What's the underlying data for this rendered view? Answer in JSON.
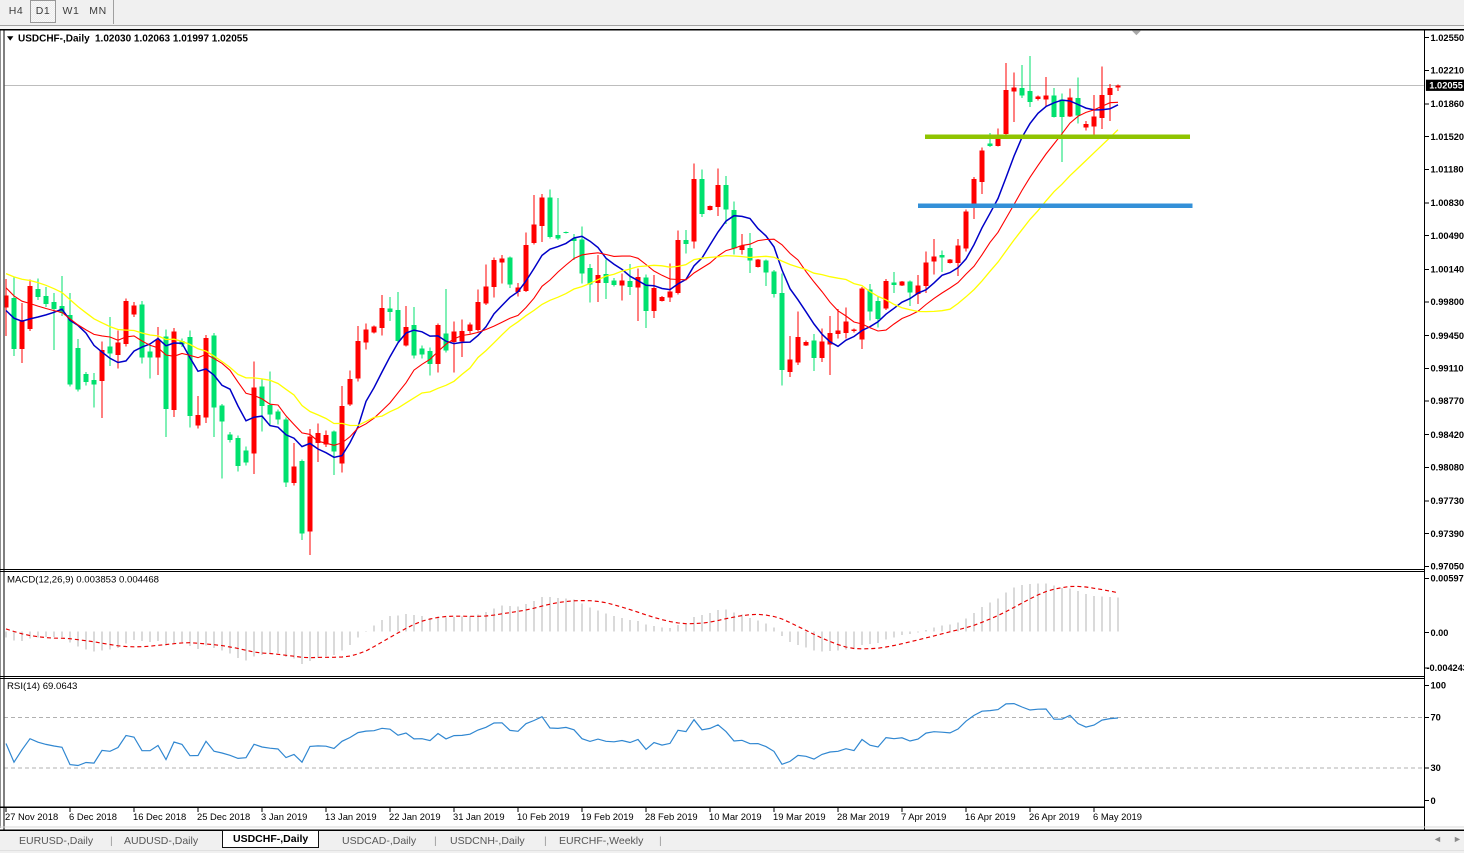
{
  "window": {
    "title": "USDCHF-,Daily"
  },
  "toolbar": {
    "buttons": [
      {
        "label": "H4",
        "active": false
      },
      {
        "label": "D1",
        "active": true
      },
      {
        "label": "W1",
        "active": false
      },
      {
        "label": "MN",
        "active": false
      }
    ]
  },
  "chart_header": {
    "symbol": "USDCHF-,Daily",
    "ohlc": "1.02030 1.02063 1.01997 1.02055"
  },
  "tabs": {
    "items": [
      {
        "label": "EURUSD-,Daily",
        "active": false
      },
      {
        "label": "AUDUSD-,Daily",
        "active": false
      },
      {
        "label": "USDCHF-,Daily",
        "active": true
      },
      {
        "label": "USDCAD-,Daily",
        "active": false
      },
      {
        "label": "USDCNH-,Daily",
        "active": false
      },
      {
        "label": "EURCHF-,Weekly",
        "active": false
      }
    ],
    "scroll_left_icon": "◄",
    "scroll_right_icon": "►"
  },
  "chart_data": {
    "type": "candlestick",
    "symbol": "USDCHF-",
    "timeframe": "Daily",
    "view": {
      "price_top": 1.02631,
      "price_bottom": 0.97027,
      "bars": 140
    },
    "price_axis": {
      "labels": [
        "1.02550",
        "1.02210",
        "1.01860",
        "1.01520",
        "1.01180",
        "1.00830",
        "1.00490",
        "1.00140",
        "0.99800",
        "0.99450",
        "0.99110",
        "0.98770",
        "0.98420",
        "0.98080",
        "0.97730",
        "0.97390",
        "0.97050"
      ],
      "current_price_label": "1.02055",
      "current_price": 1.02055
    },
    "time_axis": {
      "labels": [
        "27 Nov 2018",
        "6 Dec 2018",
        "16 Dec 2018",
        "25 Dec 2018",
        "3 Jan 2019",
        "13 Jan 2019",
        "22 Jan 2019",
        "31 Jan 2019",
        "10 Feb 2019",
        "19 Feb 2019",
        "28 Feb 2019",
        "10 Mar 2019",
        "19 Mar 2019",
        "28 Mar 2019",
        "7 Apr 2019",
        "16 Apr 2019",
        "26 Apr 2019",
        "6 May 2019"
      ],
      "first_label_bar": 0,
      "bars_per_label": 8
    },
    "candles": {
      "open": [
        0.99743,
        0.99842,
        0.99311,
        0.99519,
        0.99935,
        0.99863,
        0.998,
        0.99759,
        0.99665,
        0.99322,
        0.99051,
        0.98989,
        0.9898,
        0.99339,
        0.99249,
        0.99364,
        0.99672,
        0.99774,
        0.99287,
        0.99224,
        0.99443,
        0.98674,
        0.99394,
        0.99436,
        0.98514,
        0.98598,
        0.99454,
        0.98722,
        0.98421,
        0.98384,
        0.98253,
        0.98223,
        0.98922,
        0.98726,
        0.98663,
        0.98576,
        0.97917,
        0.98146,
        0.97414,
        0.98333,
        0.98318,
        0.98452,
        0.98122,
        0.98733,
        0.99003,
        0.99379,
        0.99481,
        0.99528,
        0.99733,
        0.99718,
        0.99346,
        0.99563,
        0.99314,
        0.9929,
        0.99157,
        0.99475,
        0.99383,
        0.9939,
        0.99501,
        0.99508,
        0.99786,
        0.99956,
        1.0021,
        1.00261,
        0.99902,
        0.99917,
        1.00414,
        1.00589,
        1.0089,
        1.00499,
        1.00529,
        1.0046,
        1.00452,
        1.00154,
        0.99998,
        1.00094,
        1.00025,
        0.9997,
        1.00019,
        0.99952,
        1.00055,
        0.99708,
        0.99811,
        0.99848,
        0.99896,
        1.00446,
        1.00428,
        1.01081,
        1.00757,
        1.00791,
        1.0102,
        1.00757,
        1.00341,
        1.00361,
        1.00166,
        1.00234,
        1.0012,
        0.99895,
        0.9907,
        0.99171,
        0.9935,
        0.99399,
        0.99217,
        0.99358,
        0.99465,
        0.99479,
        0.99498,
        0.99408,
        0.99931,
        0.99811,
        0.99731,
        1.00003,
        0.99972,
        1.00012,
        0.99885,
        0.99966,
        1.00221,
        1.00287,
        1.00207,
        1.00207,
        1.00355,
        1.00799,
        1.0105,
        1.01449,
        1.01425,
        1.01546,
        1.0199,
        1.02025,
        1.01998,
        1.0191,
        1.01905,
        1.01948,
        1.01907,
        1.01732,
        1.01921,
        1.01618,
        1.01625,
        1.01713,
        1.01954,
        1.0203
      ],
      "high": [
        1.0004,
        1.0006,
        0.9979,
        1.00033,
        1.00046,
        0.99956,
        0.99894,
        1.00071,
        0.99894,
        0.99415,
        0.99072,
        0.99061,
        0.9939,
        0.99646,
        0.99506,
        0.99839,
        0.998,
        0.99813,
        0.99352,
        0.9954,
        0.99516,
        0.99529,
        0.99418,
        0.99504,
        0.98822,
        0.99457,
        0.99478,
        0.98741,
        0.98449,
        0.98412,
        0.98299,
        0.99183,
        0.98995,
        0.99075,
        0.98684,
        0.98598,
        0.98331,
        0.98159,
        0.98477,
        0.98537,
        0.98464,
        0.98464,
        0.98928,
        0.99086,
        0.99553,
        0.99579,
        0.99558,
        0.99874,
        0.99852,
        0.99904,
        0.9976,
        0.99749,
        0.99346,
        0.99325,
        0.99578,
        0.99938,
        0.99596,
        0.99617,
        0.99588,
        0.99932,
        1.00189,
        1.00262,
        1.0029,
        1.00276,
        0.99998,
        1.00525,
        1.00914,
        1.00922,
        1.0097,
        1.0088,
        1.00534,
        1.00508,
        1.00587,
        1.00196,
        1.0029,
        1.0024,
        1.00052,
        1.00098,
        1.00196,
        1.00147,
        1.00086,
        1.0008,
        0.99863,
        1.00202,
        1.00542,
        1.00549,
        1.01241,
        1.01177,
        1.00804,
        1.01187,
        1.01113,
        1.00845,
        1.00509,
        1.00516,
        1.00248,
        1.0024,
        1.00133,
        1.00097,
        0.99445,
        0.997,
        0.99399,
        0.99465,
        0.99526,
        0.99654,
        0.99727,
        0.99741,
        0.99522,
        0.99958,
        0.99985,
        0.99865,
        1.0004,
        1.00113,
        1.00019,
        1.00026,
        1.00079,
        1.00328,
        1.00456,
        1.00335,
        1.00248,
        1.00456,
        1.00763,
        1.01103,
        1.01406,
        1.01559,
        1.01606,
        1.02286,
        1.02186,
        1.02266,
        1.0236,
        1.01951,
        1.02143,
        1.02028,
        1.01968,
        1.02022,
        1.02135,
        1.01686,
        1.01954,
        1.0225,
        1.02068,
        1.02063
      ],
      "low": [
        0.99446,
        0.99238,
        0.99166,
        0.99498,
        0.99821,
        0.99748,
        0.99301,
        0.99655,
        0.98921,
        0.98869,
        0.98931,
        0.98704,
        0.98595,
        0.99134,
        0.99108,
        0.99339,
        0.99646,
        0.99159,
        0.99005,
        0.99041,
        0.98395,
        0.98602,
        0.99333,
        0.98492,
        0.98483,
        0.98541,
        0.98394,
        0.97964,
        0.98338,
        0.98037,
        0.98101,
        0.9801,
        0.98452,
        0.98519,
        0.98527,
        0.97873,
        0.97892,
        0.97326,
        0.9717,
        0.98134,
        0.98294,
        0.98,
        0.98024,
        0.9872,
        0.98972,
        0.99306,
        0.99472,
        0.99451,
        0.996,
        0.99386,
        0.99335,
        0.9921,
        0.9921,
        0.99034,
        0.99066,
        0.99273,
        0.99066,
        0.99229,
        0.9947,
        0.99493,
        0.99771,
        0.99845,
        0.99991,
        0.99946,
        0.99858,
        0.99902,
        1.00399,
        1.00422,
        1.00462,
        1.00444,
        1.00513,
        1.00238,
        0.99992,
        0.99793,
        0.998,
        0.99829,
        0.99964,
        0.99818,
        0.99872,
        0.99604,
        0.99531,
        0.99635,
        0.99805,
        0.99799,
        0.99878,
        1.00306,
        1.00357,
        1.00684,
        1.00751,
        1.00697,
        1.0061,
        1.00294,
        1.00294,
        1.001,
        1.0016,
        0.99966,
        0.99845,
        0.98929,
        0.99021,
        0.99143,
        0.99343,
        0.99081,
        0.99177,
        0.99043,
        0.99418,
        0.99418,
        0.99485,
        0.99311,
        0.9961,
        0.99536,
        0.99717,
        0.99896,
        0.99967,
        0.99758,
        0.99777,
        0.99892,
        1.00086,
        1.00113,
        1.00201,
        1.00073,
        1.00328,
        1.00664,
        1.00922,
        1.01413,
        1.01418,
        1.01533,
        1.01675,
        1.01924,
        1.0183,
        1.01897,
        1.01835,
        1.01719,
        1.01256,
        1.01726,
        1.01659,
        1.01585,
        1.01538,
        1.01598,
        1.01686,
        1.01997
      ],
      "close": [
        0.99868,
        0.99311,
        0.99613,
        0.99967,
        0.99852,
        0.99779,
        0.99727,
        0.99686,
        0.98942,
        0.9889,
        0.98968,
        0.98942,
        0.99301,
        0.99262,
        0.99377,
        0.99813,
        0.99762,
        0.99224,
        0.99224,
        0.99407,
        0.98687,
        0.99492,
        0.99358,
        0.98614,
        0.98624,
        0.99426,
        0.98705,
        0.98558,
        0.98366,
        0.98092,
        0.98131,
        0.98909,
        0.9872,
        0.98629,
        0.98576,
        0.97921,
        0.98088,
        0.97393,
        0.984,
        0.98437,
        0.98415,
        0.98245,
        0.9872,
        0.99001,
        0.99394,
        0.99515,
        0.99545,
        0.99737,
        0.99694,
        0.99397,
        0.99542,
        0.99241,
        0.99252,
        0.99155,
        0.9956,
        0.99298,
        0.99492,
        0.99501,
        0.99566,
        0.998,
        0.99962,
        1.00237,
        1.00254,
        0.99983,
        0.99953,
        1.00393,
        1.00605,
        1.0089,
        1.00478,
        1.0046,
        1.00518,
        1.00435,
        1.00095,
        0.99982,
        1.00083,
        0.99998,
        0.99978,
        1.00025,
        0.99957,
        1.00061,
        0.99708,
        0.99946,
        0.99853,
        0.99908,
        1.00447,
        1.00402,
        1.01081,
        1.00716,
        1.00798,
        1.0102,
        1.00764,
        1.00355,
        1.00388,
        1.00234,
        1.0024,
        1.00106,
        0.99885,
        0.99094,
        0.99204,
        0.99438,
        0.99386,
        0.99215,
        0.99391,
        0.99479,
        0.99506,
        0.99599,
        0.99515,
        0.99939,
        0.99703,
        0.99623,
        1.00019,
        0.99977,
        1.00012,
        0.99898,
        0.99972,
        1.00213,
        1.00274,
        1.00261,
        1.0024,
        1.00388,
        1.00744,
        1.0108,
        1.01379,
        1.01423,
        1.01499,
        1.02004,
        1.02031,
        1.01951,
        1.01883,
        1.01937,
        1.01949,
        1.01726,
        1.01726,
        1.01927,
        1.0174,
        1.01652,
        1.01732,
        1.01954,
        1.02028,
        1.02055
      ],
      "bull_color": "#ff0000",
      "bear_color": "#00e16e"
    },
    "indicator_warmup_closes": [
      0.99405,
      0.99413,
      0.99421,
      0.99429,
      0.99437,
      0.99445,
      0.99453,
      0.99461,
      0.99469,
      0.99477,
      0.99485,
      0.99493,
      0.99501,
      0.99509,
      0.99509,
      0.99591,
      0.99672,
      0.99754,
      0.99835,
      0.99917,
      0.99999,
      1.0008,
      1.00162,
      1.00244,
      1.00325,
      1.00407,
      1.00489,
      1.0057,
      1.0057,
      1.00482,
      1.00394,
      1.00306,
      1.00218,
      1.0013,
      1.00042,
      0.99954,
      0.99866,
      0.99778,
      0.9969,
      0.99602,
      0.99514,
      0.99426
    ],
    "moving_averages": [
      {
        "name": "ma-fast",
        "period": 8,
        "method": "sma",
        "color": "#0000c8",
        "width": 1.5
      },
      {
        "name": "ma-mid",
        "period": 14,
        "method": "sma",
        "color": "#ff0000",
        "width": 1.1
      },
      {
        "name": "ma-slow",
        "period": 22,
        "method": "sma",
        "color": "#ffff00",
        "width": 1.3
      }
    ],
    "trend_lines": [
      {
        "name": "resistance",
        "price": 1.0152,
        "bar_start": 114.9,
        "bar_end": 148.0,
        "color": "#8fc400",
        "width": 4.6
      },
      {
        "name": "support",
        "price": 1.008,
        "bar_start": 114.0,
        "bar_end": 148.3,
        "color": "#3390d8",
        "width": 4.6
      }
    ],
    "current_price_line_color": "#bdbdbd",
    "macd": {
      "label": "MACD(12,26,9)",
      "value": "0.003853",
      "signal_value": "0.004468",
      "fast": 12,
      "slow": 26,
      "signal": 9,
      "scale_labels": [
        "0.00597",
        "0.00",
        "-0.004243"
      ],
      "histogram_color": "#b6b6b6",
      "signal_color": "#e80000"
    },
    "rsi": {
      "label": "RSI(14)",
      "value": "69.0643",
      "period": 14,
      "levels": [
        70,
        30
      ],
      "scale_labels": [
        "100",
        "70",
        "30",
        "0"
      ],
      "line_color": "#3087d1",
      "level_color": "#b0b0b0"
    },
    "shift_marker_bar": 141.3
  }
}
